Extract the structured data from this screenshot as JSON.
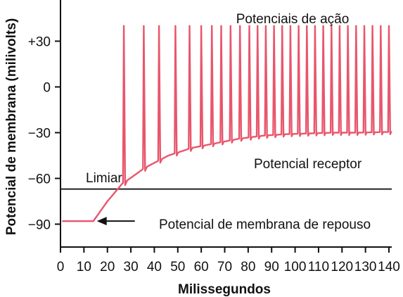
{
  "chart_data": {
    "type": "line",
    "title": "",
    "xlabel": "Milissegundos",
    "ylabel": "Potencial de membrana (milivolts)",
    "xlim": [
      0,
      140
    ],
    "ylim": [
      -105,
      57
    ],
    "x_ticks": [
      0,
      10,
      20,
      30,
      40,
      50,
      60,
      70,
      80,
      90,
      100,
      110,
      120,
      130,
      140
    ],
    "y_ticks": [
      {
        "value": 30,
        "label": "+30"
      },
      {
        "value": 0,
        "label": "0"
      },
      {
        "value": -30,
        "label": "−30"
      },
      {
        "value": -60,
        "label": "−60"
      },
      {
        "value": -90,
        "label": "−90"
      }
    ],
    "grid": false,
    "legend": "none",
    "colors": {
      "trace": "#e8566c",
      "threshold": "#222222",
      "arrow": "#111111"
    },
    "threshold": {
      "value": -67,
      "label": "Limiar"
    },
    "resting_potential": {
      "value": -88,
      "x_start": 1,
      "x_end": 14,
      "label": "Potencial de membrana de repouso"
    },
    "receptor_potential": {
      "label": "Potencial receptor",
      "x": [
        14,
        20,
        26,
        36,
        46,
        56,
        66,
        76,
        86,
        96,
        106,
        116,
        126,
        141
      ],
      "y": [
        -88,
        -75,
        -64,
        -53,
        -45,
        -40,
        -37,
        -34,
        -32,
        -31,
        -30.5,
        -30,
        -30,
        -29.5
      ]
    },
    "action_potentials": {
      "label": "Potenciais de ação",
      "peak": 40,
      "spike_times": [
        27,
        35.5,
        42,
        49,
        55,
        60,
        64.5,
        68.5,
        72.5,
        76.5,
        80.5,
        84,
        87.5,
        91,
        94.5,
        98,
        101.5,
        105,
        108.5,
        112,
        115.5,
        119,
        122.5,
        126,
        129.5,
        133,
        136.5,
        140
      ]
    }
  }
}
